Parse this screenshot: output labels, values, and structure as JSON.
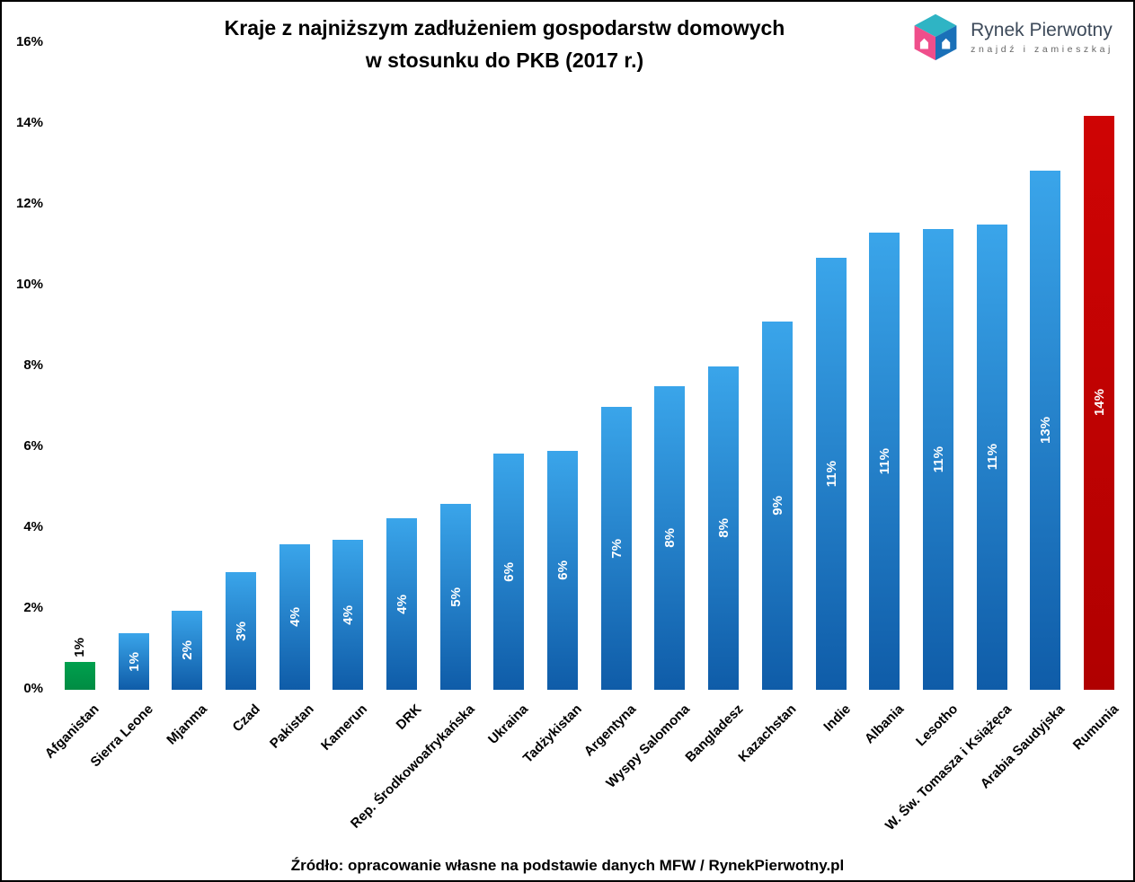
{
  "title": {
    "line1": "Kraje z najniższym zadłużeniem gospodarstw domowych",
    "line2": "w stosunku do PKB (2017 r.)"
  },
  "logo": {
    "brand": "Rynek Pierwotny",
    "tagline": "znajdź i zamieszkaj"
  },
  "source": "Źródło: opracowanie własne na podstawie danych MFW / RynekPierwotny.pl",
  "chart_data": {
    "type": "bar",
    "title": "Kraje z najniższym zadłużeniem gospodarstw domowych w stosunku do PKB (2017 r.)",
    "categories": [
      "Afganistan",
      "Sierra Leone",
      "Mjanma",
      "Czad",
      "Pakistan",
      "Kamerun",
      "DRK",
      "Rep. Środkowoafrykańska",
      "Ukraina",
      "Tadżykistan",
      "Argentyna",
      "Wyspy Salomona",
      "Bangladesz",
      "Kazachstan",
      "Indie",
      "Albania",
      "Lesotho",
      "W. Św. Tomasza i Książęca",
      "Arabia Saudyjska",
      "Rumunia"
    ],
    "values": [
      0.7,
      1.4,
      1.95,
      2.9,
      3.6,
      3.7,
      4.25,
      4.6,
      5.85,
      5.9,
      7.0,
      7.5,
      8.0,
      9.1,
      10.7,
      11.3,
      11.4,
      11.5,
      12.85,
      14.2
    ],
    "labels": [
      "1%",
      "1%",
      "2%",
      "3%",
      "4%",
      "4%",
      "4%",
      "5%",
      "6%",
      "6%",
      "7%",
      "8%",
      "8%",
      "9%",
      "11%",
      "11%",
      "11%",
      "11%",
      "13%",
      "14%"
    ],
    "bar_color_keys": [
      "green",
      "blue",
      "blue",
      "blue",
      "blue",
      "blue",
      "blue",
      "blue",
      "blue",
      "blue",
      "blue",
      "blue",
      "blue",
      "blue",
      "blue",
      "blue",
      "blue",
      "blue",
      "blue",
      "red"
    ],
    "outside_label_indexes": [
      0
    ],
    "palette": {
      "blue_top": "#3aa5ea",
      "blue_bottom": "#0f5ca8",
      "green": "#00a04e",
      "green_dark": "#008c43",
      "red": "#cf0404",
      "red_dark": "#b00000",
      "label_inside": "#ffffff",
      "label_outside": "#000000"
    },
    "xlabel": "",
    "ylabel": "",
    "ylim": [
      0,
      16
    ],
    "y_ticks": [
      "0%",
      "2%",
      "4%",
      "6%",
      "8%",
      "10%",
      "12%",
      "14%",
      "16%"
    ],
    "grid": false,
    "legend": false
  }
}
